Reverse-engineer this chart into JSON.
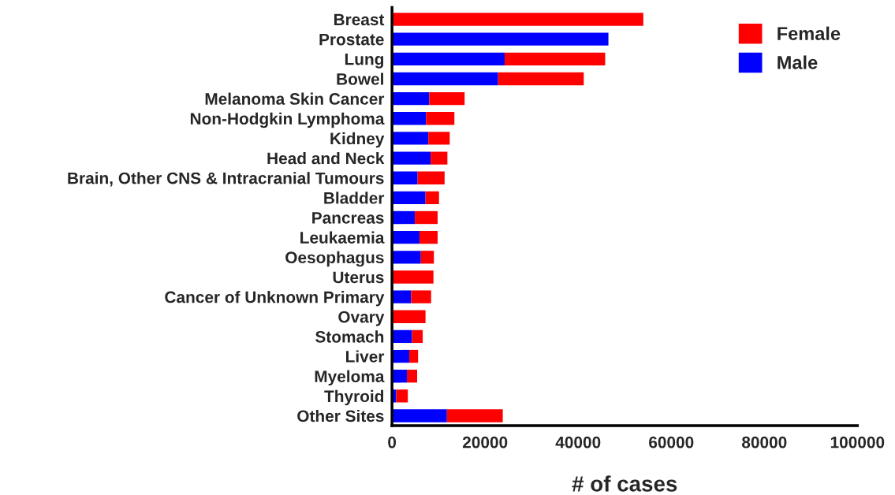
{
  "chart_data": {
    "type": "bar",
    "orientation": "horizontal",
    "stacked": true,
    "xlabel": "# of cases",
    "categories": [
      "Breast",
      "Prostate",
      "Lung",
      "Bowel",
      "Melanoma Skin Cancer",
      "Non-Hodgkin Lymphoma",
      "Kidney",
      "Head and Neck",
      "Brain, Other CNS & Intracranial Tumours",
      "Bladder",
      "Pancreas",
      "Leukaemia",
      "Oesophagus",
      "Uterus",
      "Cancer of Unknown Primary",
      "Ovary",
      "Stomach",
      "Liver",
      "Myeloma",
      "Thyroid",
      "Other Sites"
    ],
    "series": [
      {
        "name": "Male",
        "color": "#0000ff",
        "values": [
          0,
          46500,
          24200,
          22800,
          8000,
          7300,
          7800,
          8300,
          5500,
          7200,
          4900,
          5900,
          6200,
          0,
          4100,
          0,
          4300,
          3700,
          3200,
          900,
          11800
        ]
      },
      {
        "name": "Female",
        "color": "#ff0000",
        "values": [
          54000,
          0,
          21600,
          18400,
          7600,
          6100,
          4600,
          3600,
          5800,
          2900,
          4900,
          3900,
          2800,
          8900,
          4300,
          7200,
          2300,
          1900,
          2200,
          2500,
          12000
        ]
      }
    ],
    "xlim": [
      0,
      100000
    ],
    "xticks": [
      0,
      20000,
      40000,
      60000,
      80000,
      100000
    ],
    "grid": false,
    "legend": "top right"
  }
}
